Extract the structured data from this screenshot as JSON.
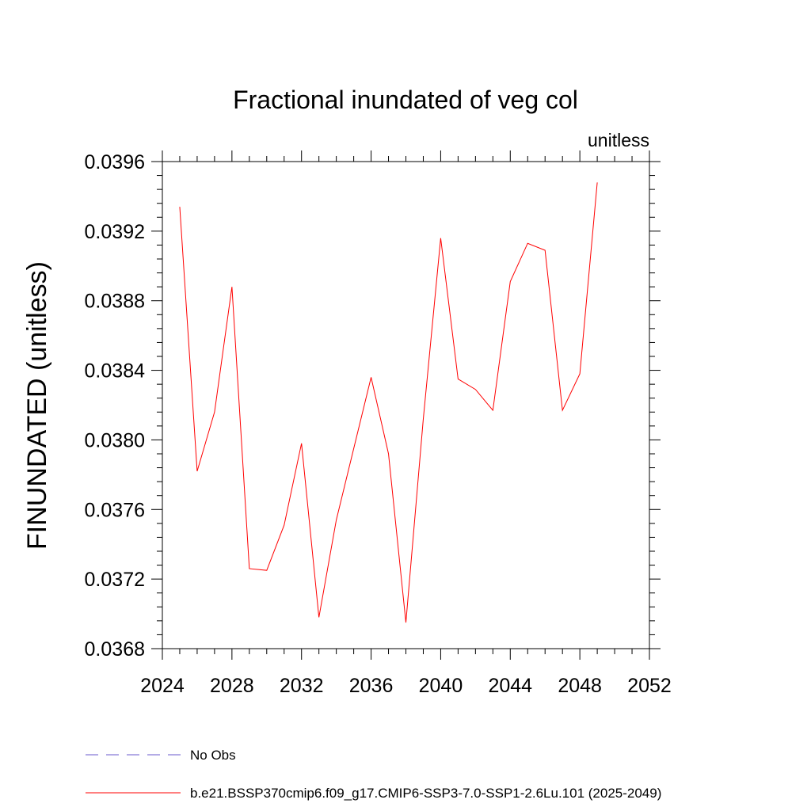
{
  "chart_data": {
    "type": "line",
    "title": "Fractional inundated of veg col",
    "units_label": "unitless",
    "ylabel": "FINUNDATED  (unitless)",
    "xlabel": "",
    "xlim": [
      2024,
      2052
    ],
    "ylim": [
      0.0368,
      0.0396
    ],
    "x_ticks": [
      2024,
      2028,
      2032,
      2036,
      2040,
      2044,
      2048,
      2052
    ],
    "x_tick_labels": [
      "2024",
      "2028",
      "2032",
      "2036",
      "2040",
      "2044",
      "2048",
      "2052"
    ],
    "y_ticks": [
      0.0368,
      0.0372,
      0.0376,
      0.038,
      0.0384,
      0.0388,
      0.0392,
      0.0396
    ],
    "y_tick_labels": [
      "0.0368",
      "0.0372",
      "0.0376",
      "0.0380",
      "0.0384",
      "0.0388",
      "0.0392",
      "0.0396"
    ],
    "grid": false,
    "legend_position": "bottom",
    "series": [
      {
        "name": "b.e21.BSSP370cmip6.f09_g17.CMIP6-SSP3-7.0-SSP1-2.6Lu.101 (2025-2049)",
        "color": "#ff0000",
        "dash": "solid",
        "x": [
          2025,
          2026,
          2027,
          2028,
          2029,
          2030,
          2031,
          2032,
          2033,
          2034,
          2035,
          2036,
          2037,
          2038,
          2039,
          2040,
          2041,
          2042,
          2043,
          2044,
          2045,
          2046,
          2047,
          2048,
          2049
        ],
        "y": [
          0.03934,
          0.03782,
          0.03816,
          0.03888,
          0.03726,
          0.03725,
          0.03751,
          0.03798,
          0.03698,
          0.03754,
          0.03795,
          0.03836,
          0.03792,
          0.03695,
          0.03812,
          0.03916,
          0.03835,
          0.03829,
          0.03817,
          0.03891,
          0.03913,
          0.03909,
          0.03817,
          0.03838,
          0.03948
        ]
      }
    ],
    "legend": [
      {
        "label": "No Obs",
        "color": "#6a5acd",
        "dash": "dashed"
      },
      {
        "label": "b.e21.BSSP370cmip6.f09_g17.CMIP6-SSP3-7.0-SSP1-2.6Lu.101 (2025-2049)",
        "color": "#ff0000",
        "dash": "solid"
      }
    ]
  }
}
